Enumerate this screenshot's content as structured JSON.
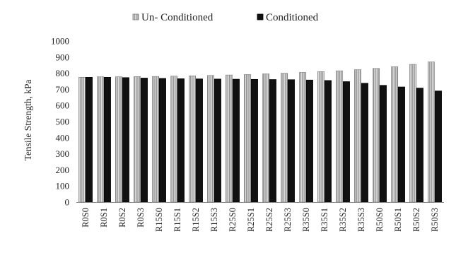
{
  "chart_data": {
    "type": "bar",
    "categories": [
      "R0S0",
      "R0S1",
      "R0S2",
      "R0S3",
      "R15S0",
      "R15S1",
      "R15S2",
      "R15S3",
      "R25S0",
      "R25S1",
      "R25S2",
      "R25S3",
      "R35S0",
      "R35S1",
      "R35S2",
      "R35S3",
      "R50S0",
      "R50S1",
      "R50S2",
      "R50S3"
    ],
    "series": [
      {
        "name": "Un- Conditioned",
        "color": "#b8b8b8",
        "pattern": "vertical-stripes",
        "values": [
          775,
          778,
          778,
          779,
          780,
          782,
          784,
          786,
          789,
          792,
          796,
          800,
          805,
          810,
          815,
          822,
          830,
          840,
          855,
          870
        ]
      },
      {
        "name": "Conditioned",
        "color": "#111111",
        "pattern": "solid",
        "values": [
          775,
          775,
          773,
          770,
          768,
          766,
          765,
          764,
          763,
          762,
          761,
          760,
          758,
          755,
          748,
          738,
          725,
          715,
          708,
          690
        ]
      }
    ],
    "ylabel": "Tensile Strength, kPa",
    "xlabel": "",
    "ylim": [
      0,
      1000
    ],
    "yticks": [
      0,
      100,
      200,
      300,
      400,
      500,
      600,
      700,
      800,
      900,
      1000
    ],
    "grid": false,
    "legend_position": "top"
  }
}
